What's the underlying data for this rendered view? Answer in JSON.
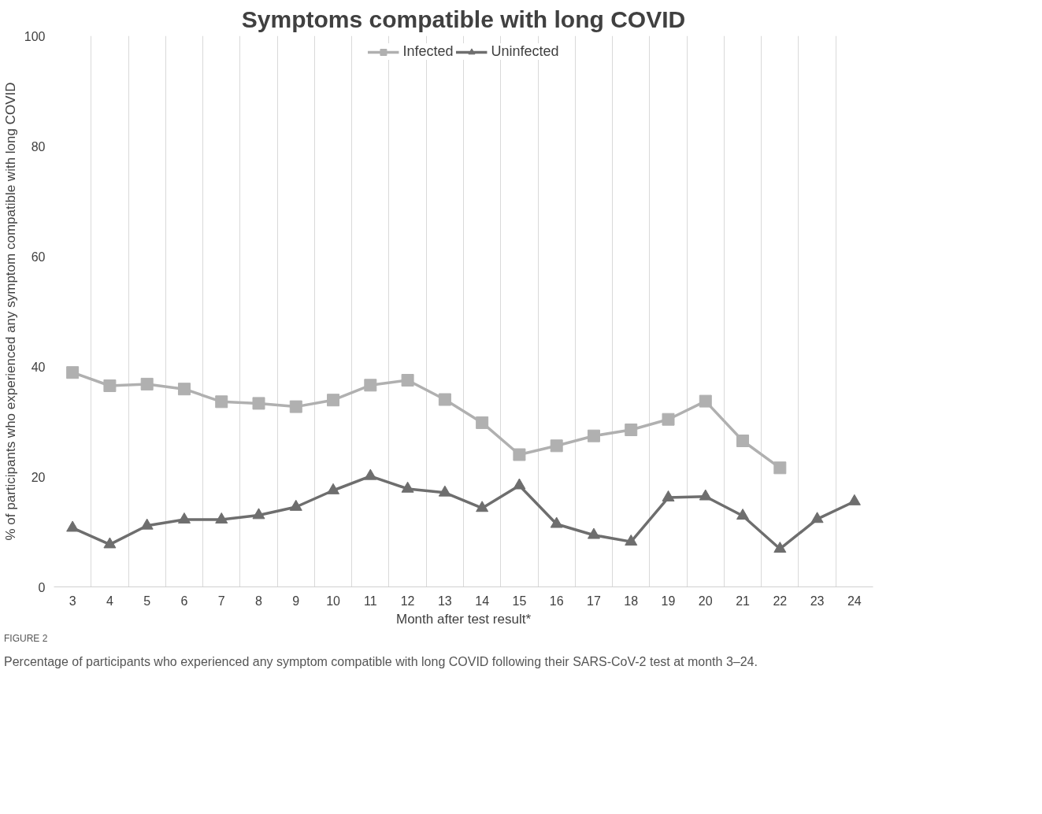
{
  "chart_data": {
    "type": "line",
    "title": "Symptoms compatible with long COVID",
    "xlabel": "Month after test result*",
    "ylabel": "% of participants who experienced any symptom compatible with long COVID",
    "categories": [
      "3",
      "4",
      "5",
      "6",
      "7",
      "8",
      "9",
      "10",
      "11",
      "12",
      "13",
      "14",
      "15",
      "16",
      "17",
      "18",
      "19",
      "20",
      "21",
      "22",
      "23",
      "24"
    ],
    "series": [
      {
        "name": "Infected",
        "color": "#b0b0b0",
        "marker": "square",
        "values": [
          38.9,
          36.5,
          36.8,
          35.9,
          33.6,
          33.3,
          32.7,
          33.9,
          36.6,
          37.5,
          34.0,
          29.8,
          24.0,
          25.6,
          27.4,
          28.5,
          30.4,
          33.7,
          26.5,
          21.6,
          null,
          null
        ]
      },
      {
        "name": "Uninfected",
        "color": "#6e6e6e",
        "marker": "triangle",
        "values": [
          10.7,
          7.7,
          11.1,
          12.2,
          12.2,
          13.0,
          14.5,
          17.5,
          20.1,
          17.8,
          17.1,
          14.3,
          18.4,
          11.4,
          9.4,
          8.2,
          16.2,
          16.4,
          12.9,
          6.9,
          12.3,
          15.5
        ]
      }
    ],
    "ylim": [
      0,
      100
    ],
    "yticks": [
      0,
      20,
      40,
      60,
      80,
      100
    ],
    "grid": "x",
    "legend": "top",
    "annotations": [
      "FIGURE 2",
      "Percentage of participants who experienced any symptom compatible with long COVID following their SARS-CoV-2 test at month 3–24."
    ]
  }
}
